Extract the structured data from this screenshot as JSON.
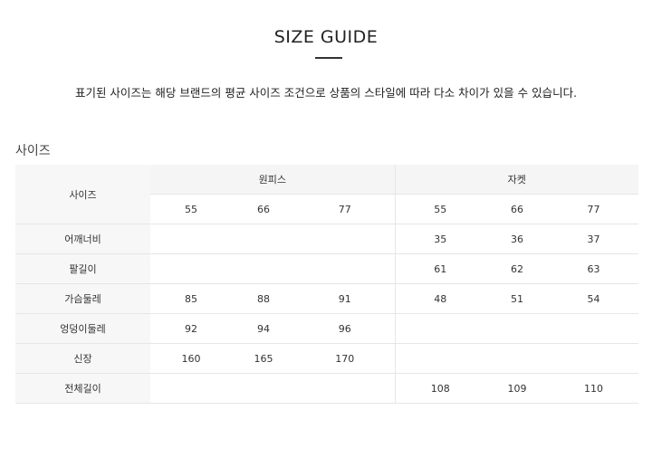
{
  "title": "SIZE GUIDE",
  "description": "표기된 사이즈는 해당 브랜드의 평균 사이즈 조건으로 상품의 스타일에 따라 다소 차이가 있을 수 있습니다.",
  "section_label": "사이즈",
  "table": {
    "corner": "사이즈",
    "groups": [
      "원피스",
      "자켓"
    ],
    "sizes": [
      "55",
      "66",
      "77"
    ],
    "rows": [
      {
        "label": "어깨너비",
        "onepiece": [
          "",
          "",
          ""
        ],
        "jacket": [
          "35",
          "36",
          "37"
        ]
      },
      {
        "label": "팔길이",
        "onepiece": [
          "",
          "",
          ""
        ],
        "jacket": [
          "61",
          "62",
          "63"
        ]
      },
      {
        "label": "가슴둘레",
        "onepiece": [
          "85",
          "88",
          "91"
        ],
        "jacket": [
          "48",
          "51",
          "54"
        ]
      },
      {
        "label": "엉덩이둘레",
        "onepiece": [
          "92",
          "94",
          "96"
        ],
        "jacket": [
          "",
          "",
          ""
        ]
      },
      {
        "label": "신장",
        "onepiece": [
          "160",
          "165",
          "170"
        ],
        "jacket": [
          "",
          "",
          ""
        ]
      },
      {
        "label": "전체길이",
        "onepiece": [
          "",
          "",
          ""
        ],
        "jacket": [
          "108",
          "109",
          "110"
        ]
      }
    ]
  }
}
